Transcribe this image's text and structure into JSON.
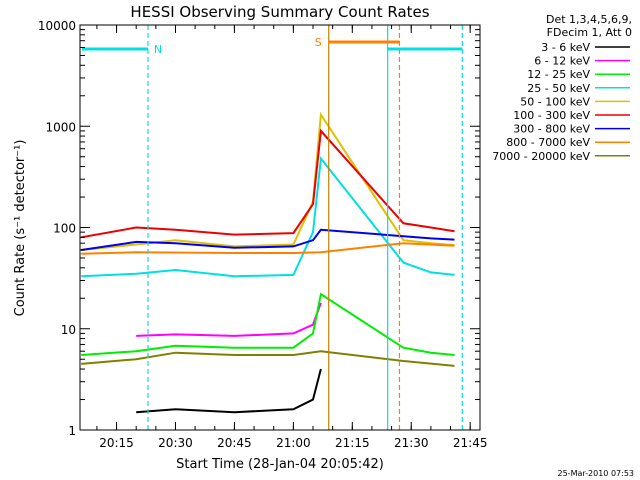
{
  "chart_data": {
    "type": "line",
    "title": "HESSI Observing Summary Count Rates",
    "xlabel": "Start Time (28-Jan-04 20:05:42)",
    "ylabel": "Count Rate (s⁻¹ detector⁻¹)",
    "yscale": "log",
    "ylim": [
      1,
      10000
    ],
    "xlim_minutes": [
      "20:05:42",
      "21:47:30"
    ],
    "x_ticks": [
      "20:15",
      "20:30",
      "20:45",
      "21:00",
      "21:15",
      "21:30",
      "21:45"
    ],
    "y_ticks": [
      "1",
      "10",
      "100",
      "1000",
      "10000"
    ],
    "legend_header": [
      "Det 1,3,4,5,6,9,",
      "FDecim 1, Att 0"
    ],
    "legend_position": "outside-right",
    "series": [
      {
        "name": "3 - 6 keV",
        "color": "#000000",
        "x": [
          "20:20",
          "20:30",
          "20:45",
          "21:00",
          "21:05",
          "21:07"
        ],
        "values": [
          1.5,
          1.6,
          1.5,
          1.6,
          2.0,
          4.0
        ]
      },
      {
        "name": "6 - 12 keV",
        "color": "#ff00ff",
        "x": [
          "20:20",
          "20:30",
          "20:45",
          "21:00",
          "21:05",
          "21:07"
        ],
        "values": [
          8.5,
          8.8,
          8.5,
          9.0,
          11,
          18
        ]
      },
      {
        "name": "12 - 25 keV",
        "color": "#00ee00",
        "x": [
          "20:06",
          "20:20",
          "20:30",
          "20:45",
          "21:00",
          "21:05",
          "21:07",
          "21:28",
          "21:35",
          "21:41"
        ],
        "values": [
          5.5,
          6.0,
          6.8,
          6.5,
          6.5,
          9,
          22,
          6.5,
          5.8,
          5.5
        ]
      },
      {
        "name": "25 - 50 keV",
        "color": "#00e0e0",
        "x": [
          "20:06",
          "20:20",
          "20:30",
          "20:45",
          "21:00",
          "21:05",
          "21:07",
          "21:28",
          "21:35",
          "21:41"
        ],
        "values": [
          33,
          35,
          38,
          33,
          34,
          90,
          480,
          45,
          36,
          34
        ]
      },
      {
        "name": "50 - 100 keV",
        "color": "#e0c000",
        "x": [
          "20:06",
          "20:20",
          "20:30",
          "20:45",
          "21:00",
          "21:05",
          "21:07",
          "21:28",
          "21:35",
          "21:41"
        ],
        "values": [
          60,
          68,
          75,
          65,
          68,
          180,
          1300,
          75,
          70,
          67
        ]
      },
      {
        "name": "100 - 300 keV",
        "color": "#ee0000",
        "x": [
          "20:06",
          "20:20",
          "20:30",
          "20:45",
          "21:00",
          "21:05",
          "21:07",
          "21:28",
          "21:35",
          "21:41"
        ],
        "values": [
          80,
          100,
          95,
          85,
          88,
          170,
          900,
          110,
          100,
          92
        ]
      },
      {
        "name": "300 - 800 keV",
        "color": "#0000ee",
        "x": [
          "20:06",
          "20:20",
          "20:30",
          "20:45",
          "21:00",
          "21:05",
          "21:07",
          "21:28",
          "21:35",
          "21:41"
        ],
        "values": [
          60,
          72,
          70,
          63,
          65,
          75,
          95,
          82,
          78,
          76
        ]
      },
      {
        "name": "800 - 7000 keV",
        "color": "#ff8000",
        "x": [
          "20:06",
          "20:20",
          "20:45",
          "21:00",
          "21:07",
          "21:28",
          "21:41"
        ],
        "values": [
          55,
          57,
          56,
          56,
          57,
          70,
          66
        ]
      },
      {
        "name": "7000 - 20000 keV",
        "color": "#808000",
        "x": [
          "20:06",
          "20:20",
          "20:30",
          "20:45",
          "21:00",
          "21:07",
          "21:28",
          "21:41"
        ],
        "values": [
          4.5,
          5.0,
          5.8,
          5.5,
          5.5,
          6.0,
          4.8,
          4.3
        ]
      }
    ],
    "annotations": [
      {
        "text": "N",
        "color": "#00e0e0"
      },
      {
        "text": "S",
        "color": "#ff8000"
      }
    ],
    "footer": "25-Mar-2010 07:53"
  }
}
